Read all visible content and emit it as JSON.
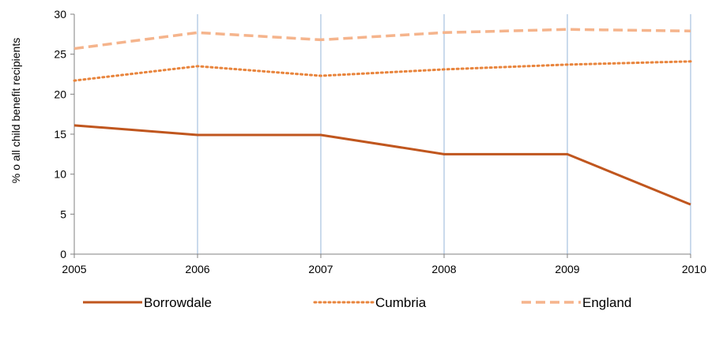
{
  "chart_data": {
    "type": "line",
    "title": "",
    "xlabel": "",
    "ylabel": "% o all child benefit recipients",
    "x": [
      "2005",
      "2006",
      "2007",
      "2008",
      "2009",
      "2010"
    ],
    "ylim": [
      0,
      30
    ],
    "yticks": [
      "0",
      "5",
      "10",
      "15",
      "20",
      "25",
      "30"
    ],
    "grid": "vertical",
    "legend": "bottom",
    "series": [
      {
        "name": "Borrowdale",
        "values": [
          16.1,
          14.9,
          14.9,
          12.5,
          12.5,
          6.2
        ],
        "color": "#C0561E",
        "style": "solid"
      },
      {
        "name": "Cumbria",
        "values": [
          21.7,
          23.5,
          22.3,
          23.1,
          23.7,
          24.1
        ],
        "color": "#E8843C",
        "style": "dotted"
      },
      {
        "name": "England",
        "values": [
          25.7,
          27.7,
          26.8,
          27.7,
          28.1,
          27.9
        ],
        "color": "#F5B48C",
        "style": "dashed"
      }
    ]
  }
}
